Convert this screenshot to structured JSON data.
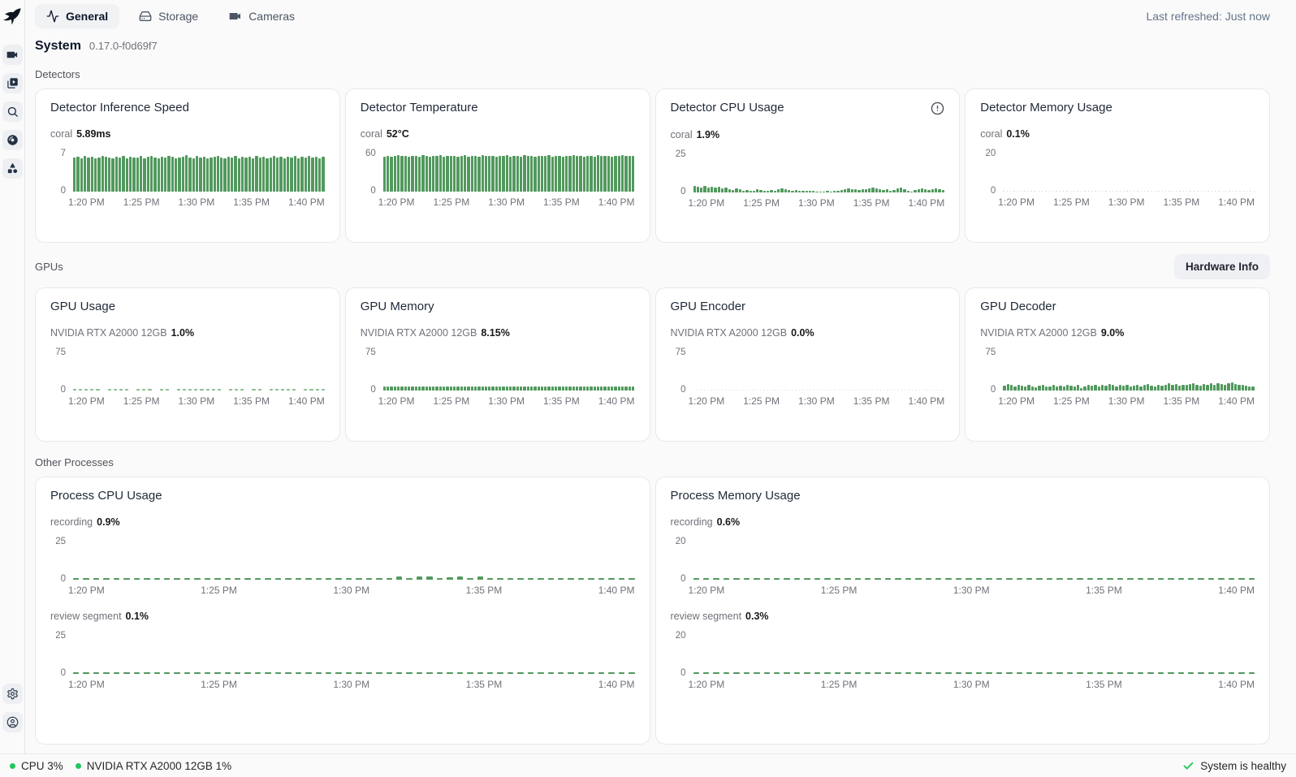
{
  "colors": {
    "bar_green": "#52995e",
    "dash_green": "#4f9a5e",
    "light_green": "#8cbd92",
    "dot_gray": "#ccd1d9",
    "status_green": "#22c55e"
  },
  "topnav": {
    "tabs": [
      {
        "label": "General",
        "icon": "activity-icon",
        "active": true
      },
      {
        "label": "Storage",
        "icon": "hard-drive-icon",
        "active": false
      },
      {
        "label": "Cameras",
        "icon": "video-camera-icon",
        "active": false
      }
    ],
    "last_refreshed": "Last refreshed: Just now"
  },
  "sidebar": {
    "icons": [
      "frigate-logo",
      "live-camera-icon",
      "review-icon",
      "search-icon",
      "export-disc-icon",
      "shapes-icon",
      "settings-gear-icon",
      "account-user-icon"
    ]
  },
  "page": {
    "title": "System",
    "version": "0.17.0-f0d69f7"
  },
  "sections": {
    "detectors": "Detectors",
    "gpus": "GPUs",
    "other": "Other Processes"
  },
  "hardware_info_label": "Hardware Info",
  "statusbar": {
    "cpu": "CPU 3%",
    "gpu": "NVIDIA RTX A2000 12GB 1%",
    "health": "System is healthy"
  },
  "chart_data": {
    "x_ticks": [
      "1:20 PM",
      "1:25 PM",
      "1:30 PM",
      "1:35 PM",
      "1:40 PM"
    ],
    "charts": {
      "inference": {
        "type": "bar",
        "title": "Detector Inference Speed",
        "series": "coral",
        "value": "5.89ms",
        "ymax": 7,
        "ymax_label": "7",
        "ymin_label": "0",
        "ylim": [
          0,
          7
        ],
        "values": [
          5.9,
          6,
          5.8,
          6.1,
          5.9,
          6,
          5.8,
          5.9,
          6.2,
          6,
          5.9,
          5.8,
          6,
          5.9,
          6.1,
          5.8,
          6,
          5.9,
          5.9,
          6.1,
          5.8,
          6,
          6.2,
          5.9,
          5.8,
          6,
          5.9,
          6.1,
          6,
          5.8,
          5.9,
          6,
          6.3,
          5.9,
          5.8,
          6.1,
          5.9,
          6,
          5.8,
          5.9,
          6,
          6.1,
          5.9,
          5.8,
          6,
          5.9,
          6.1,
          5.8,
          6,
          5.9,
          6,
          5.8,
          6.1,
          5.9,
          6,
          5.8,
          5.9,
          6.2,
          5.9,
          6,
          5.8,
          6,
          5.9,
          6.1,
          5.8,
          6,
          5.9,
          6.1,
          5.9,
          6,
          5.8,
          6
        ]
      },
      "temperature": {
        "type": "bar",
        "title": "Detector Temperature",
        "series": "coral",
        "value": "52°C",
        "ymax": 60,
        "ymax_label": "60",
        "ymin_label": "0",
        "ylim": [
          0,
          60
        ],
        "values": [
          52,
          53,
          52,
          52.5,
          53.5,
          52.5,
          53,
          52,
          52.5,
          53,
          52,
          53.5,
          52.5,
          52,
          53,
          52.5,
          53.5,
          52,
          52.5,
          53,
          52.5,
          52,
          53,
          53.5,
          52,
          52.5,
          53,
          52,
          53.5,
          52.5,
          53,
          52.5,
          52,
          53,
          52.5,
          53.5,
          52,
          53,
          52.5,
          52,
          53.5,
          52.5,
          53,
          52,
          52.5,
          53,
          52.5,
          53.5,
          52,
          53,
          52.5,
          52,
          53,
          52.5,
          53.5,
          52.5,
          53,
          52,
          52.5,
          53,
          52,
          53.5,
          52.5,
          53,
          52.5,
          52,
          53,
          52.5,
          53.5,
          53,
          52.5,
          53
        ]
      },
      "det_cpu": {
        "type": "bar",
        "title": "Detector CPU Usage",
        "series": "coral",
        "value": "1.9%",
        "ymax": 25,
        "ymax_label": "25",
        "ymin_label": "0",
        "ylim": [
          0,
          25
        ],
        "values": [
          4,
          3.5,
          3,
          3.8,
          3.2,
          3.6,
          3,
          3.4,
          2.5,
          3,
          2,
          1.5,
          2.5,
          2,
          1,
          1.5,
          1.2,
          1,
          1.8,
          1.5,
          1,
          0.8,
          1.5,
          1,
          2,
          2.5,
          2,
          1.5,
          1,
          1.5,
          1,
          0.8,
          1.2,
          1,
          0.8,
          0.6,
          0.5,
          0.6,
          0.8,
          0.5,
          1,
          0.8,
          1.5,
          2,
          2.5,
          2,
          1.8,
          1.5,
          2,
          1.8,
          2.5,
          3,
          2.5,
          2,
          1.5,
          2,
          1,
          1.5,
          2.5,
          3,
          2,
          1,
          0.5,
          1.5,
          2,
          2.5,
          2,
          1.5,
          2,
          2.5,
          2,
          1.5
        ]
      },
      "det_mem": {
        "type": "dot",
        "title": "Detector Memory Usage",
        "series": "coral",
        "value": "0.1%",
        "ymax": 20,
        "ymax_label": "20",
        "ymin_label": "0",
        "ylim": [
          0,
          20
        ],
        "const_value": {
          "v": 0.1,
          "n": 72
        },
        "color": "#ccd1d9"
      },
      "gpu_usage": {
        "type": "dash",
        "title": "GPU Usage",
        "series": "NVIDIA RTX A2000 12GB",
        "value": "1.0%",
        "ymax": 75,
        "ymax_label": "75",
        "ymin_label": "0",
        "ylim": [
          0,
          75
        ],
        "gap_class": "g-dash3",
        "color": "#8cbd92",
        "values": [
          1,
          1,
          1,
          1,
          1,
          null,
          1,
          1,
          1,
          1,
          null,
          1,
          1,
          1,
          null,
          1,
          1,
          null,
          1,
          1,
          1,
          1,
          1,
          1,
          1,
          1,
          null,
          1,
          1,
          1,
          null,
          1,
          1,
          null,
          1,
          1,
          1,
          1,
          1,
          null,
          1,
          1,
          1,
          1
        ]
      },
      "gpu_mem": {
        "type": "bar",
        "title": "GPU Memory",
        "series": "NVIDIA RTX A2000 12GB",
        "value": "8.15%",
        "ymax": 75,
        "ymax_label": "75",
        "ymin_label": "0",
        "ylim": [
          0,
          75
        ],
        "const_value": {
          "v": 8.15,
          "n": 72
        }
      },
      "gpu_enc": {
        "type": "dot",
        "title": "GPU Encoder",
        "series": "NVIDIA RTX A2000 12GB",
        "value": "0.0%",
        "ymax": 75,
        "ymax_label": "75",
        "ymin_label": "0",
        "ylim": [
          0,
          75
        ],
        "const_value": {
          "v": 0.05,
          "n": 72
        },
        "color": "#dcdfe4"
      },
      "gpu_dec": {
        "type": "bar",
        "title": "GPU Decoder",
        "series": "NVIDIA RTX A2000 12GB",
        "value": "9.0%",
        "ymax": 75,
        "ymax_label": "75",
        "ymin_label": "0",
        "ylim": [
          0,
          75
        ],
        "values": [
          9,
          12,
          10,
          8,
          11,
          9,
          7,
          10,
          8,
          6,
          9,
          11,
          8,
          7,
          10,
          8,
          9,
          7,
          11,
          9,
          8,
          10,
          4,
          8,
          10,
          9,
          11,
          8,
          10,
          9,
          12,
          10,
          8,
          11,
          9,
          10,
          8,
          9,
          11,
          8,
          10,
          12,
          9,
          8,
          10,
          9,
          11,
          13,
          10,
          12,
          9,
          11,
          10,
          12,
          14,
          11,
          9,
          12,
          10,
          13,
          11,
          14,
          12,
          10,
          13,
          15,
          12,
          10,
          11,
          9,
          8,
          7
        ]
      },
      "p_cpu_rec": {
        "type": "dash",
        "series": "recording",
        "value": "0.9%",
        "ymax": 25,
        "ymax_label": "25",
        "ymin_label": "0",
        "ylim": [
          0,
          25
        ],
        "values": [
          0.9,
          0.9,
          0.9,
          1.2,
          0.9,
          0.9,
          0.9,
          0.9,
          0.9,
          0.9,
          0.9,
          0.9,
          0.9,
          0.9,
          0.9,
          0.9,
          0.9,
          0.9,
          0.9,
          0.9,
          0.9,
          0.9,
          0.9,
          0.9,
          0.9,
          0.9,
          0.9,
          0.9,
          0.9,
          0.9,
          0.9,
          0.9,
          2,
          0.9,
          1.8,
          2,
          0.9,
          1.5,
          2,
          0.9,
          1.8,
          0.9,
          0.9,
          0.9,
          0.9,
          0.9,
          0.9,
          0.9,
          0.9,
          0.9,
          0.9,
          0.9,
          0.9,
          0.9,
          0.9,
          0.9
        ]
      },
      "p_cpu_rev": {
        "type": "dash",
        "series": "review segment",
        "value": "0.1%",
        "ymax": 25,
        "ymax_label": "25",
        "ymin_label": "0",
        "ylim": [
          0,
          25
        ],
        "const_value": {
          "v": 0.1,
          "n": 56
        }
      },
      "p_mem_rec": {
        "type": "dash",
        "series": "recording",
        "value": "0.6%",
        "ymax": 20,
        "ymax_label": "20",
        "ymin_label": "0",
        "ylim": [
          0,
          20
        ],
        "const_value": {
          "v": 0.6,
          "n": 56
        }
      },
      "p_mem_rev": {
        "type": "dash",
        "series": "review segment",
        "value": "0.3%",
        "ymax": 20,
        "ymax_label": "20",
        "ymin_label": "0",
        "ylim": [
          0,
          20
        ],
        "const_value": {
          "v": 0.3,
          "n": 56
        }
      }
    },
    "process_cards": {
      "cpu": {
        "title": "Process CPU Usage"
      },
      "mem": {
        "title": "Process Memory Usage"
      }
    }
  }
}
